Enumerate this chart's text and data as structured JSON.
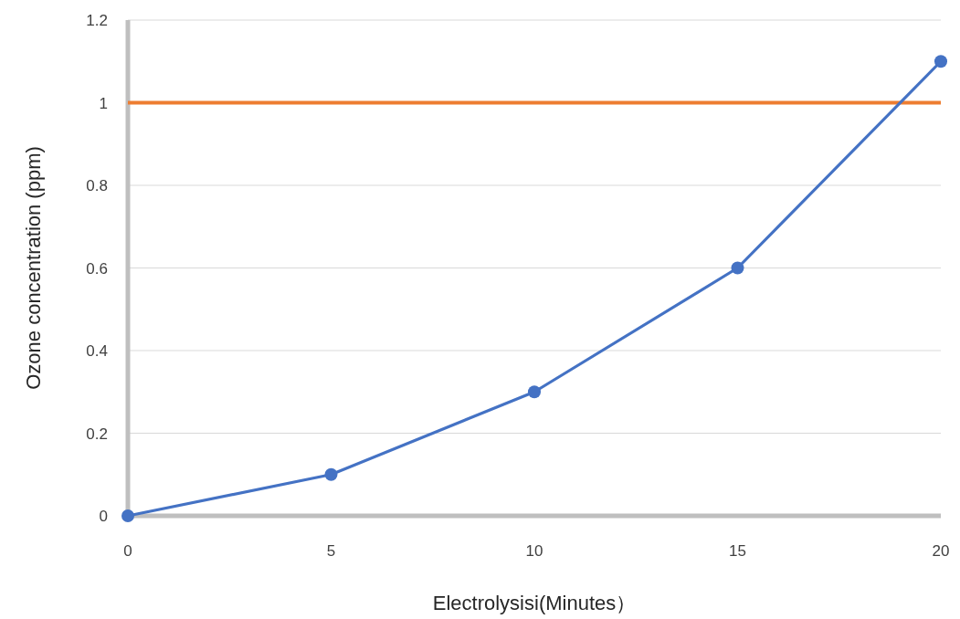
{
  "chart_data": {
    "type": "line",
    "xlabel": "Electrolysisi(Minutes）",
    "ylabel": "Ozone concentration (ppm)",
    "x": [
      0,
      5,
      10,
      15,
      20
    ],
    "series": [
      {
        "color": "#4472c4",
        "values": [
          0,
          0.1,
          0.3,
          0.6,
          1.1
        ]
      }
    ],
    "xlim": [
      0,
      20
    ],
    "xticks": [
      0,
      5,
      10,
      15,
      20
    ],
    "ylim": [
      0,
      1.2
    ],
    "yticks": [
      0,
      0.2,
      0.4,
      0.6,
      0.8,
      1,
      1.2
    ],
    "ref_lines": [
      {
        "axis": "y",
        "value": 1,
        "color": "#ed7d31",
        "line_style": "solid"
      }
    ],
    "grid": "y",
    "marker": "circle",
    "line_style": "solid"
  }
}
